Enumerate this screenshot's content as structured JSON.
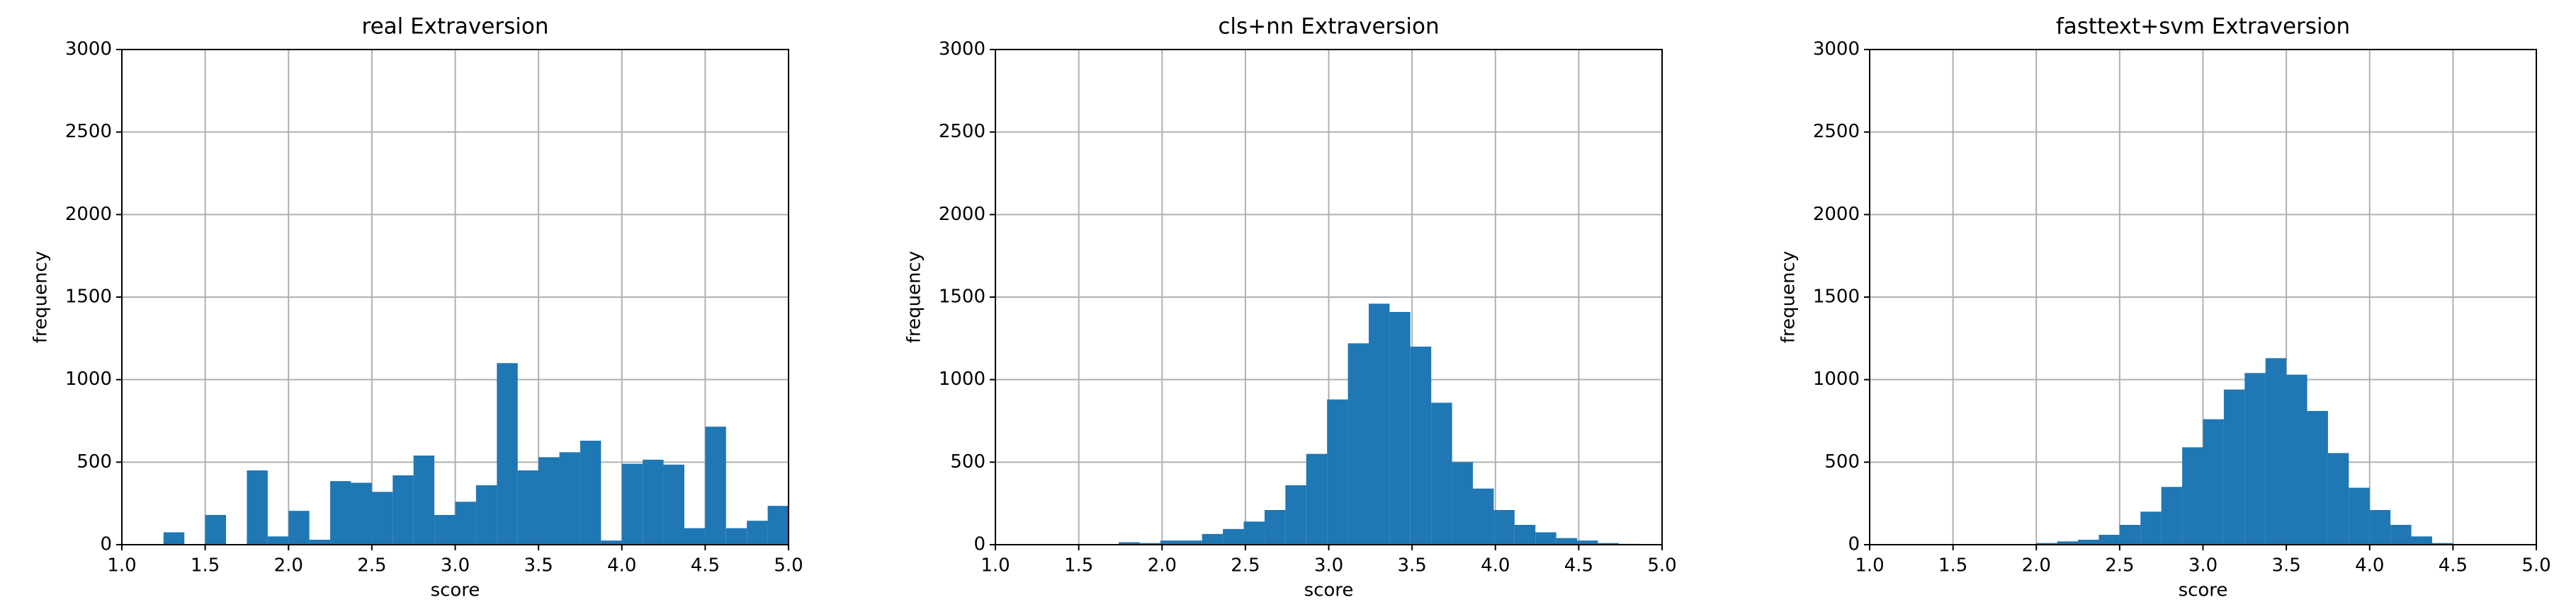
{
  "chart_data": [
    {
      "type": "histogram",
      "title": "real Extraversion",
      "xlabel": "score",
      "ylabel": "frequency",
      "color": "#1f77b4",
      "grid": true,
      "bins": [
        1.25,
        1.375,
        1.5,
        1.625,
        1.75,
        1.875,
        2.0,
        2.125,
        2.25,
        2.375,
        2.5,
        2.625,
        2.75,
        2.875,
        3.0,
        3.125,
        3.25,
        3.375,
        3.5,
        3.625,
        3.75,
        3.875,
        4.0,
        4.125,
        4.25,
        4.375,
        4.5,
        4.625,
        4.75,
        4.875,
        5.0
      ],
      "values": [
        75,
        0,
        180,
        0,
        450,
        50,
        205,
        30,
        385,
        375,
        320,
        420,
        540,
        180,
        260,
        360,
        1100,
        450,
        530,
        560,
        630,
        25,
        490,
        515,
        485,
        100,
        715,
        100,
        145,
        235
      ],
      "xlim": [
        1.0,
        5.0
      ],
      "ylim": [
        0,
        3000
      ],
      "xticks": [
        {
          "value": 1.0,
          "label": "1.0"
        },
        {
          "value": 1.5,
          "label": "1.5"
        },
        {
          "value": 2.0,
          "label": "2.0"
        },
        {
          "value": 2.5,
          "label": "2.5"
        },
        {
          "value": 3.0,
          "label": "3.0"
        },
        {
          "value": 3.5,
          "label": "3.5"
        },
        {
          "value": 4.0,
          "label": "4.0"
        },
        {
          "value": 4.5,
          "label": "4.5"
        },
        {
          "value": 5.0,
          "label": "5.0"
        }
      ],
      "yticks": [
        0,
        500,
        1000,
        1500,
        2000,
        2500,
        3000
      ]
    },
    {
      "type": "histogram",
      "title": "cls+nn Extraversion",
      "xlabel": "score",
      "ylabel": "frequency",
      "color": "#1f77b4",
      "grid": true,
      "bins": [
        1.74,
        1.865,
        1.99,
        2.115,
        2.24,
        2.365,
        2.49,
        2.615,
        2.74,
        2.865,
        2.99,
        3.115,
        3.24,
        3.365,
        3.49,
        3.615,
        3.74,
        3.865,
        3.99,
        4.115,
        4.24,
        4.365,
        4.49,
        4.615,
        4.74,
        4.865
      ],
      "values": [
        15,
        10,
        25,
        25,
        65,
        95,
        140,
        210,
        360,
        550,
        880,
        1220,
        1460,
        1410,
        1200,
        860,
        500,
        340,
        210,
        120,
        75,
        40,
        25,
        10,
        5
      ],
      "xlim": [
        1.0,
        5.0
      ],
      "ylim": [
        0,
        3000
      ],
      "xticks": [
        {
          "value": 1.0,
          "label": "1.0"
        },
        {
          "value": 1.5,
          "label": "1.5"
        },
        {
          "value": 2.0,
          "label": "2.0"
        },
        {
          "value": 2.5,
          "label": "2.5"
        },
        {
          "value": 3.0,
          "label": "3.0"
        },
        {
          "value": 3.5,
          "label": "3.5"
        },
        {
          "value": 4.0,
          "label": "4.0"
        },
        {
          "value": 4.5,
          "label": "4.5"
        },
        {
          "value": 5.0,
          "label": "5.0"
        }
      ],
      "yticks": [
        0,
        500,
        1000,
        1500,
        2000,
        2500,
        3000
      ]
    },
    {
      "type": "histogram",
      "title": "fasttext+svm Extraversion",
      "xlabel": "score",
      "ylabel": "frequency",
      "color": "#1f77b4",
      "grid": true,
      "bins": [
        2.0,
        2.125,
        2.25,
        2.375,
        2.5,
        2.625,
        2.75,
        2.875,
        3.0,
        3.125,
        3.25,
        3.375,
        3.5,
        3.625,
        3.75,
        3.875,
        4.0,
        4.125,
        4.25,
        4.375,
        4.5
      ],
      "values": [
        10,
        20,
        30,
        60,
        120,
        200,
        350,
        590,
        760,
        940,
        1040,
        1130,
        1030,
        810,
        555,
        345,
        210,
        120,
        50,
        10
      ],
      "xlim": [
        1.0,
        5.0
      ],
      "ylim": [
        0,
        3000
      ],
      "xticks": [
        {
          "value": 1.0,
          "label": "1.0"
        },
        {
          "value": 1.5,
          "label": "1.5"
        },
        {
          "value": 2.0,
          "label": "2.0"
        },
        {
          "value": 2.5,
          "label": "2.5"
        },
        {
          "value": 3.0,
          "label": "3.0"
        },
        {
          "value": 3.5,
          "label": "3.5"
        },
        {
          "value": 4.0,
          "label": "4.0"
        },
        {
          "value": 4.5,
          "label": "4.5"
        },
        {
          "value": 5.0,
          "label": "5.0"
        }
      ],
      "yticks": [
        0,
        500,
        1000,
        1500,
        2000,
        2500,
        3000
      ]
    }
  ]
}
